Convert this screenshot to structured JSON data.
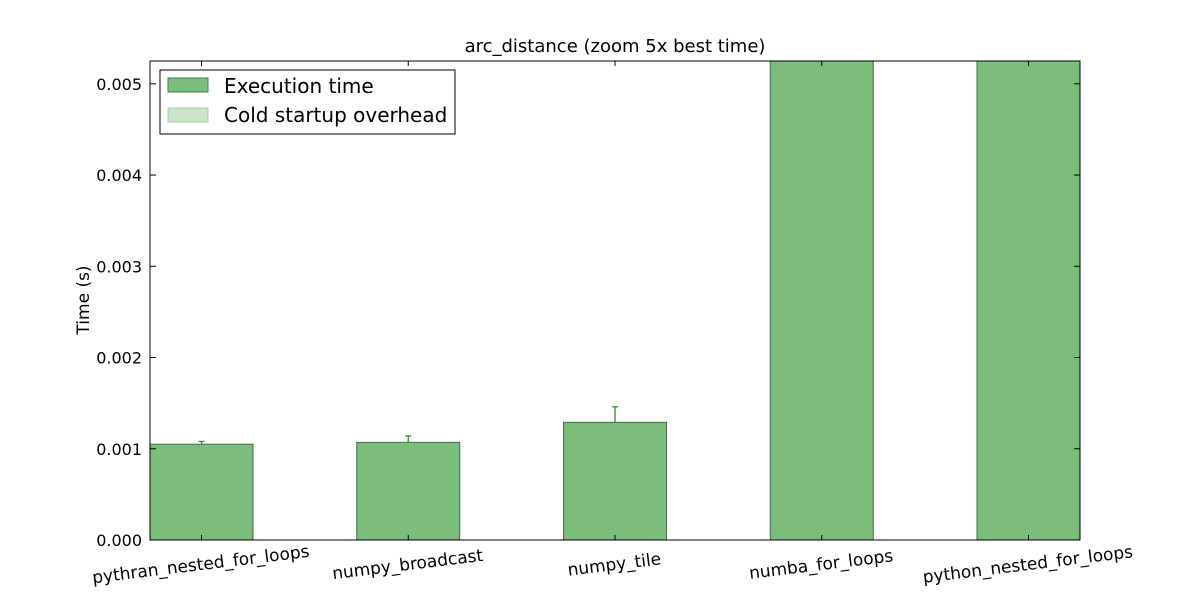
{
  "chart_data": {
    "type": "bar",
    "title": "arc_distance (zoom 5x best time)",
    "xlabel": "",
    "ylabel": "Time (s)",
    "ylim": [
      0,
      0.00525
    ],
    "yticks": [
      0.0,
      0.001,
      0.002,
      0.003,
      0.004,
      0.005
    ],
    "ytick_labels": [
      "0.000",
      "0.001",
      "0.002",
      "0.003",
      "0.004",
      "0.005"
    ],
    "categories": [
      "pythran_nested_for_loops",
      "numpy_broadcast",
      "numpy_tile",
      "numba_for_loops",
      "python_nested_for_loops"
    ],
    "series": [
      {
        "name": "Execution time",
        "color": "#7bbd7b",
        "values": [
          0.00105,
          0.00107,
          0.00129,
          0.00525,
          0.00525
        ],
        "errors": [
          3e-05,
          7e-05,
          0.00017,
          null,
          null
        ]
      },
      {
        "name": "Cold startup overhead",
        "color": "#c9e4c9",
        "values": [
          0,
          0,
          0,
          0,
          0
        ]
      }
    ],
    "grid": false,
    "legend": "top-left"
  }
}
